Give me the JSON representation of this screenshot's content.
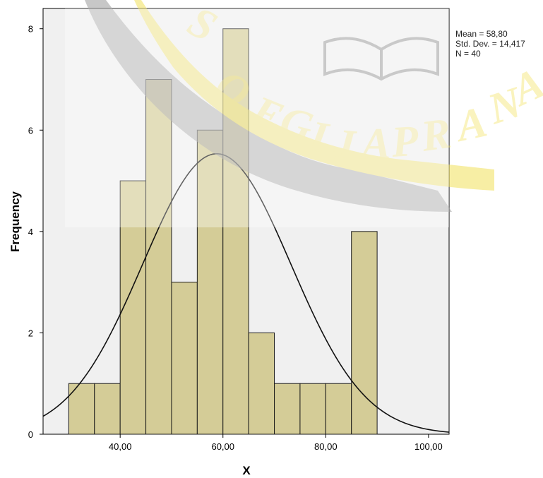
{
  "chart_data": {
    "type": "bar",
    "xlabel": "X",
    "ylabel": "Frequency",
    "xlim": [
      25,
      104
    ],
    "ylim": [
      0,
      8.4
    ],
    "x_ticks": [
      40,
      60,
      80,
      100
    ],
    "x_tick_labels": [
      "40,00",
      "60,00",
      "80,00",
      "100,00"
    ],
    "y_ticks": [
      0,
      2,
      4,
      6,
      8
    ],
    "y_tick_labels": [
      "0",
      "2",
      "4",
      "6",
      "8"
    ],
    "bins": [
      {
        "start": 30,
        "end": 35,
        "count": 1
      },
      {
        "start": 35,
        "end": 40,
        "count": 1
      },
      {
        "start": 40,
        "end": 45,
        "count": 5
      },
      {
        "start": 45,
        "end": 50,
        "count": 7
      },
      {
        "start": 50,
        "end": 55,
        "count": 3
      },
      {
        "start": 55,
        "end": 60,
        "count": 6
      },
      {
        "start": 60,
        "end": 65,
        "count": 8
      },
      {
        "start": 65,
        "end": 70,
        "count": 2
      },
      {
        "start": 70,
        "end": 75,
        "count": 1
      },
      {
        "start": 75,
        "end": 80,
        "count": 1
      },
      {
        "start": 80,
        "end": 85,
        "count": 1
      },
      {
        "start": 85,
        "end": 90,
        "count": 4
      }
    ],
    "normal_curve": {
      "mean": 58.8,
      "std_dev": 14.417,
      "n": 40,
      "bin_width": 5
    },
    "stats": {
      "mean": "Mean = 58,80",
      "std_dev": "Std. Dev. = 14,417",
      "n": "N = 40"
    },
    "grid": false,
    "colors": {
      "bar_fill": "#d4cc97",
      "bar_stroke": "#1a1a1a",
      "plot_background": "#f0f0f0",
      "curve": "#111111"
    }
  },
  "watermark": {
    "type": "university seal",
    "text": "SOEGIJAPRANATA",
    "colors": {
      "yellow": "#f1e15a",
      "gray": "#9a9a9a"
    }
  }
}
